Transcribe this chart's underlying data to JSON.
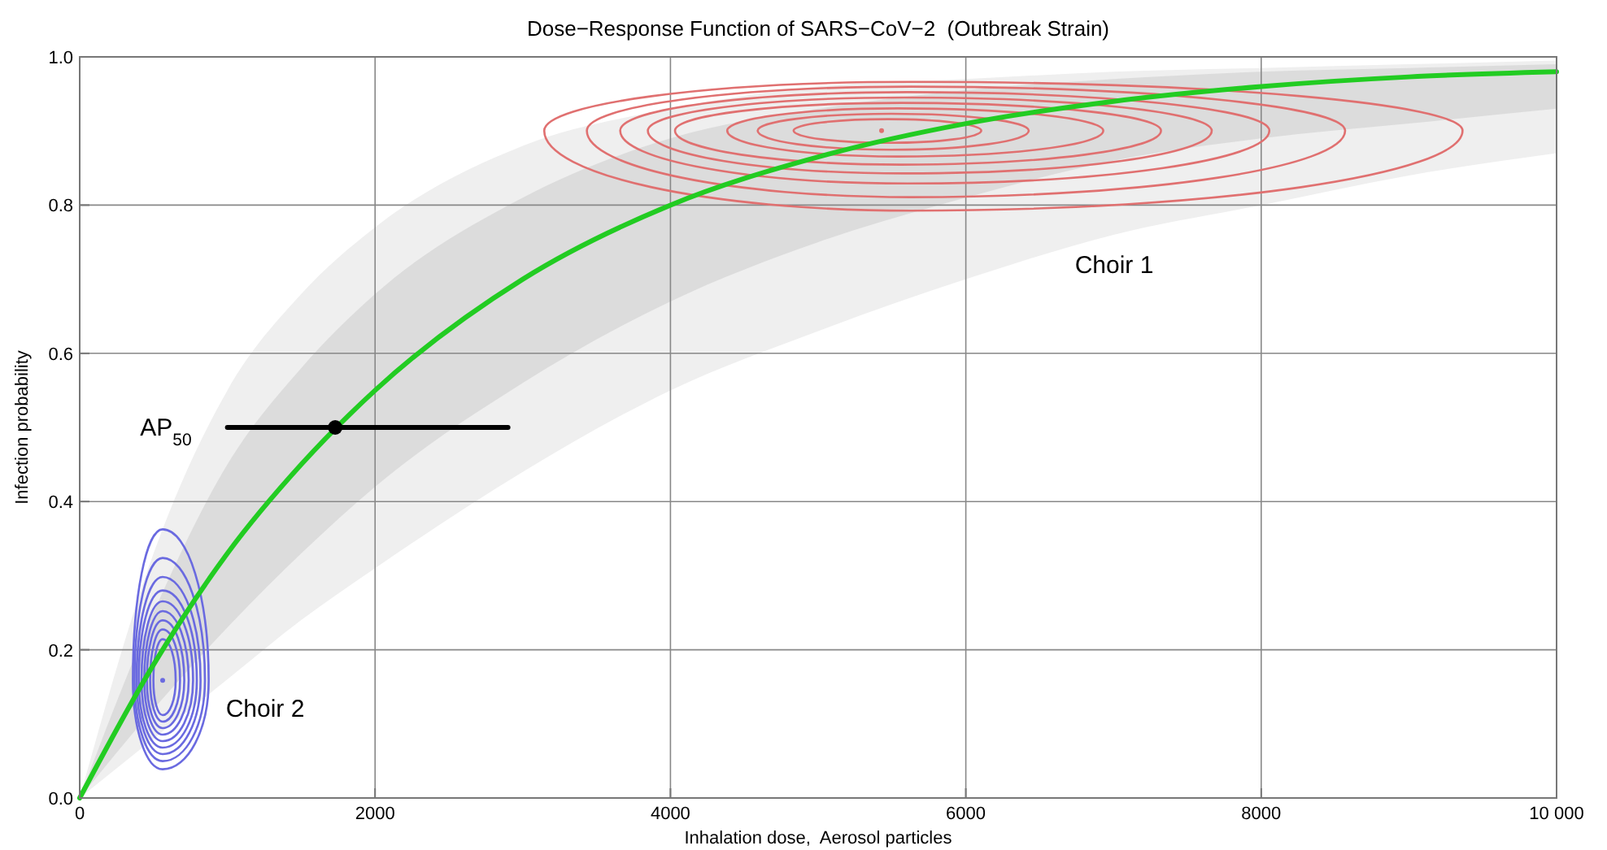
{
  "chart_data": {
    "type": "line",
    "title": "Dose−Response Function of SARS−CoV−2  (Outbreak Strain)",
    "xlabel": "Inhalation dose,  Aerosol particles",
    "ylabel": "Infection probability",
    "x": [
      0,
      500,
      1000,
      1500,
      2000,
      3000,
      4000,
      5000,
      6000,
      7000,
      8000,
      9000,
      10000
    ],
    "xlim": [
      0,
      10000
    ],
    "ylim": [
      0,
      1
    ],
    "xticks": [
      0,
      2000,
      4000,
      6000,
      8000,
      {
        "value": 10000,
        "label": "10 000"
      }
    ],
    "yticks": [
      {
        "value": 0,
        "label": "0.0"
      },
      0.2,
      0.4,
      0.6,
      0.8,
      {
        "value": 1,
        "label": "1.0"
      }
    ],
    "grid": true,
    "series": [
      {
        "color": "#efefef",
        "values": [
          null,
          null,
          null,
          null,
          null,
          null,
          null,
          null,
          null,
          null,
          null,
          null,
          null
        ],
        "lower": [
          0,
          0.08,
          0.16,
          0.24,
          0.31,
          0.44,
          0.55,
          0.63,
          0.7,
          0.76,
          0.8,
          0.84,
          0.87
        ],
        "upper": [
          0,
          0.33,
          0.55,
          0.68,
          0.77,
          0.88,
          0.93,
          0.96,
          0.97,
          0.98,
          0.985,
          0.99,
          0.995
        ]
      },
      {
        "color": "#dcdcdc",
        "values": [
          null,
          null,
          null,
          null,
          null,
          null,
          null,
          null,
          null,
          null,
          null,
          null,
          null
        ],
        "lower": [
          0,
          0.12,
          0.23,
          0.33,
          0.42,
          0.56,
          0.67,
          0.75,
          0.81,
          0.86,
          0.89,
          0.91,
          0.93
        ],
        "upper": [
          0,
          0.25,
          0.45,
          0.58,
          0.68,
          0.81,
          0.89,
          0.93,
          0.955,
          0.97,
          0.98,
          0.985,
          0.99
        ]
      },
      {
        "color": "#22cc22",
        "values": [
          0,
          0.18,
          0.33,
          0.45,
          0.55,
          0.7,
          0.8,
          0.865,
          0.91,
          0.94,
          0.96,
          0.973,
          0.98
        ]
      },
      {
        "name": "AP$_{50}$",
        "color": "#000000",
        "x": [
          1000,
          2900
        ],
        "values": [
          0.5,
          0.5
        ]
      },
      {
        "type": "scatter",
        "color": "#000000",
        "marker": "circle",
        "x": [
          1730
        ],
        "values": [
          0.5
        ]
      }
    ],
    "annotations": [
      "Choir 1",
      "Choir 2"
    ]
  }
}
